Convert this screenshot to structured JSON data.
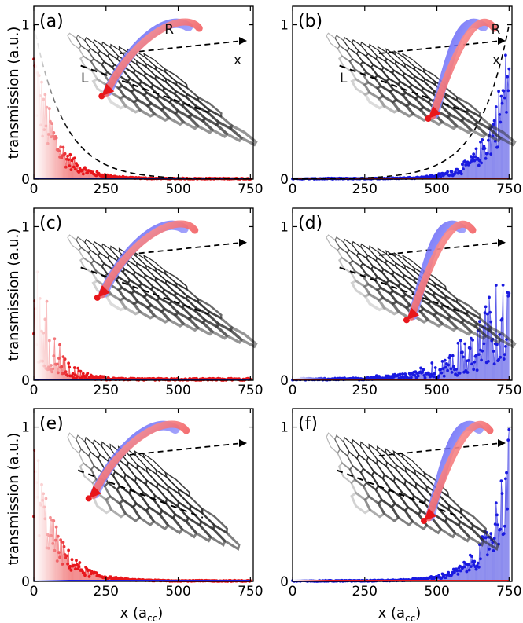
{
  "figure": {
    "ylabel": "transmission (a.u.)",
    "xlabel_main": "x (a",
    "xlabel_sub": "cc",
    "xlabel_close": ")"
  },
  "colors": {
    "red": "#e8161b",
    "red_fill": "#f4a0a0",
    "blue": "#1a1ae0",
    "blue_fill": "#a0a0f0",
    "dashed": "#000000",
    "lattice": "#2b2b2b"
  },
  "chart_data": [
    {
      "panel": "(a)",
      "type": "line",
      "series_color": "red",
      "xticks": [
        "0",
        "250",
        "500",
        "750"
      ],
      "yticks": [
        "0",
        "1"
      ],
      "xlim": [
        0,
        760
      ],
      "ylim": [
        0,
        1.12
      ],
      "decay": "left",
      "decay_length": 70,
      "noise": "smooth",
      "envelope": {
        "shown": true,
        "side": "left",
        "decay_length": 105
      },
      "inset": {
        "labels": [
          "R",
          "L",
          "x"
        ],
        "arrow": "top-right",
        "impurity_x": 235
      }
    },
    {
      "panel": "(b)",
      "type": "line",
      "series_color": "blue",
      "xticks": [
        "0",
        "250",
        "500",
        "750"
      ],
      "yticks": [
        "0",
        "1"
      ],
      "xlim": [
        0,
        760
      ],
      "ylim": [
        0,
        1.12
      ],
      "decay": "right",
      "decay_length": 70,
      "noise": "smooth",
      "envelope": {
        "shown": true,
        "side": "right",
        "decay_length": 105
      },
      "inset": {
        "labels": [
          "R",
          "L",
          "x"
        ],
        "arrow": "top-right",
        "impurity_x": 470
      }
    },
    {
      "panel": "(c)",
      "type": "line",
      "series_color": "red",
      "xticks": [
        "0",
        "250",
        "500",
        "750"
      ],
      "yticks": [
        "0",
        "1"
      ],
      "xlim": [
        0,
        760
      ],
      "ylim": [
        0,
        1.12
      ],
      "decay": "left",
      "decay_length": 55,
      "noise": "spiky",
      "envelope": {
        "shown": false
      },
      "inset": {
        "labels": [],
        "arrow": "top-right",
        "impurity_x": 220
      }
    },
    {
      "panel": "(d)",
      "type": "line",
      "series_color": "blue",
      "xticks": [
        "0",
        "250",
        "500",
        "750"
      ],
      "yticks": [
        "0",
        "1"
      ],
      "xlim": [
        0,
        760
      ],
      "ylim": [
        0,
        1.12
      ],
      "decay": "right",
      "decay_length": 110,
      "noise": "spiky",
      "envelope": {
        "shown": false
      },
      "inset": {
        "labels": [],
        "arrow": "top-right",
        "impurity_x": 395
      }
    },
    {
      "panel": "(e)",
      "type": "line",
      "series_color": "red",
      "xticks": [
        "0",
        "250",
        "500",
        "750"
      ],
      "yticks": [
        "0",
        "1"
      ],
      "xlim": [
        0,
        760
      ],
      "ylim": [
        0,
        1.12
      ],
      "decay": "left",
      "decay_length": 75,
      "noise": "smooth",
      "envelope": {
        "shown": false
      },
      "inset": {
        "labels": [],
        "arrow": "top-right",
        "impurity_x": 190
      }
    },
    {
      "panel": "(f)",
      "type": "line",
      "series_color": "blue",
      "xticks": [
        "0",
        "250",
        "500",
        "750"
      ],
      "yticks": [
        "0",
        "1"
      ],
      "xlim": [
        0,
        760
      ],
      "ylim": [
        0,
        1.12
      ],
      "decay": "right",
      "decay_length": 75,
      "noise": "smooth",
      "envelope": {
        "shown": false
      },
      "inset": {
        "labels": [],
        "arrow": "top-right",
        "impurity_x": 455
      }
    }
  ]
}
